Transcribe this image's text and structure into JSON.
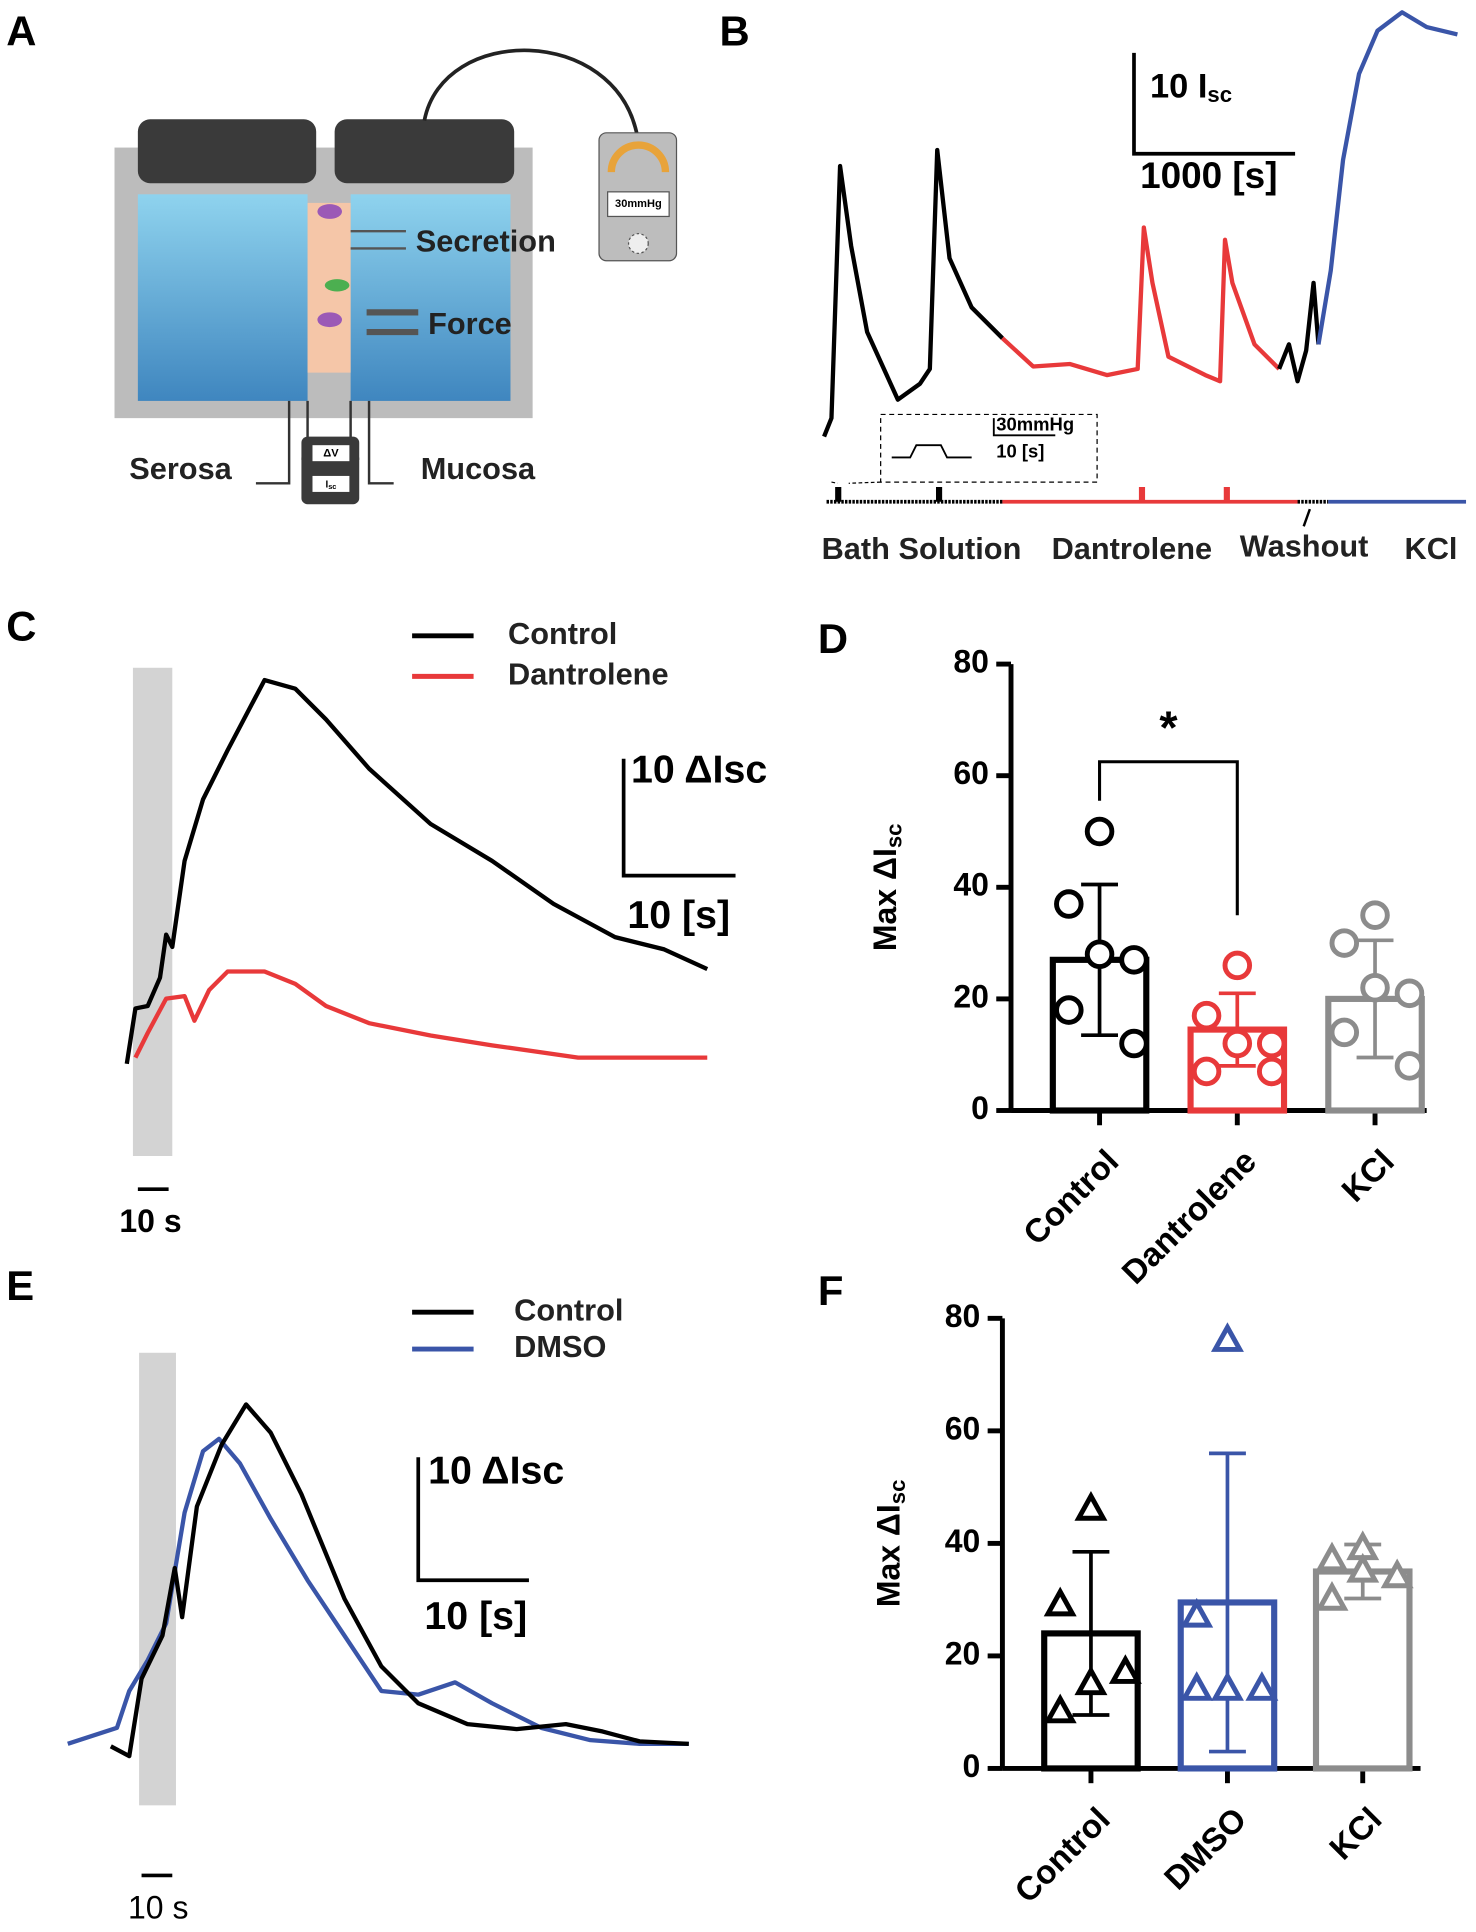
{
  "panel_labels": [
    "A",
    "B",
    "C",
    "D",
    "E",
    "F"
  ],
  "diagram_a": {
    "secretion": "Secretion",
    "force": "Force",
    "serosa": "Serosa",
    "mucosa": "Mucosa",
    "pressure": "30mmHg",
    "voltage": "ΔV",
    "current": "I",
    "current_sub": "sc"
  },
  "traces_b": {
    "scale_y": "10 I",
    "scale_y_sub": "sc",
    "scale_x": "1000 [s]",
    "inset_y": "30mmHg",
    "inset_x": "10 [s]",
    "conditions": [
      "Bath Solution",
      "Dantrolene",
      "Washout",
      "KCl"
    ]
  },
  "traces_c": {
    "legend": [
      {
        "name": "Control",
        "color": "#000000"
      },
      {
        "name": "Dantrolene",
        "color": "#e8393a"
      }
    ],
    "scale_y": "10 ΔIsc",
    "scale_x": "10 [s]",
    "time_bar": "10 s"
  },
  "traces_e": {
    "legend": [
      {
        "name": "Control",
        "color": "#000000"
      },
      {
        "name": "DMSO",
        "color": "#3a55a8"
      }
    ],
    "scale_y": "10 ΔIsc",
    "scale_x": "10 [s]",
    "time_bar": "10 s"
  },
  "chart_data": [
    {
      "type": "bar",
      "categories": [
        "Control",
        "Dantrolene",
        "KCl"
      ],
      "colors": [
        "#000000",
        "#e8393a",
        "#8c8c8c"
      ],
      "values": [
        27,
        14.5,
        20
      ],
      "errors": [
        13.5,
        6.5,
        10.5
      ],
      "points": [
        [
          50,
          37,
          27,
          28,
          18,
          12
        ],
        [
          26,
          17,
          12,
          12,
          7,
          7
        ],
        [
          35,
          30,
          21,
          22,
          14,
          8
        ]
      ],
      "marker": "circle",
      "ylim": [
        0,
        80
      ],
      "yticks": [
        0,
        20,
        40,
        60,
        80
      ],
      "y_label": "Max ΔI",
      "y_label_sub": "sc",
      "significance": {
        "label": "*",
        "between": [
          0,
          1
        ]
      }
    },
    {
      "type": "bar",
      "categories": [
        "Control",
        "DMSO",
        "KCl"
      ],
      "colors": [
        "#000000",
        "#3a55a8",
        "#8c8c8c"
      ],
      "values": [
        24,
        29.5,
        35
      ],
      "errors": [
        14.5,
        26.5,
        4.8
      ],
      "points": [
        [
          46,
          29,
          17,
          15,
          10
        ],
        [
          76,
          27,
          14,
          14,
          14
        ],
        [
          39,
          37,
          34,
          35,
          30
        ]
      ],
      "marker": "triangle",
      "ylim": [
        0,
        80
      ],
      "yticks": [
        0,
        20,
        40,
        60,
        80
      ],
      "y_label": "Max ΔI",
      "y_label_sub": "sc"
    }
  ]
}
